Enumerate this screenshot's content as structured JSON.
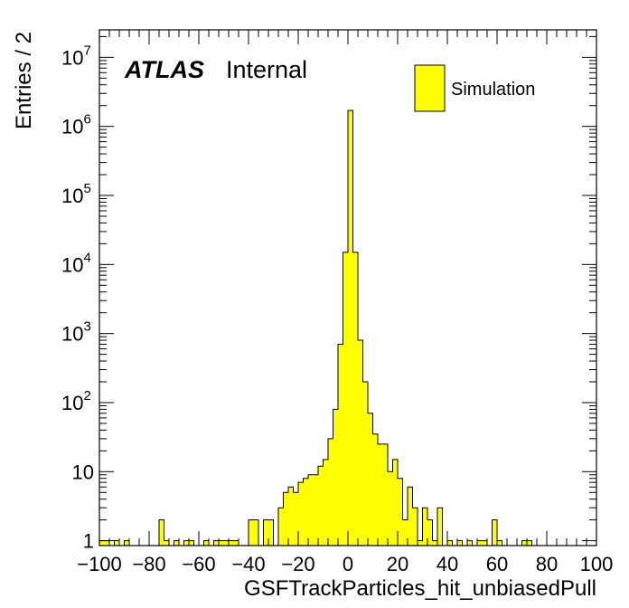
{
  "chart_data": {
    "type": "histogram",
    "xlabel": "GSFTrackParticles_hit_unbiasedPull",
    "ylabel": "Entries / 2",
    "xlim": [
      -100,
      100
    ],
    "ylim": [
      0.85,
      25000000
    ],
    "yscale": "log",
    "bin_width": 2,
    "x_ticks": [
      "−100",
      "−80",
      "−60",
      "−40",
      "−20",
      "0",
      "20",
      "40",
      "60",
      "80",
      "100"
    ],
    "y_ticks": [
      {
        "value": 1,
        "base": "1",
        "exp": ""
      },
      {
        "value": 10,
        "base": "10",
        "exp": ""
      },
      {
        "value": 100,
        "base": "10",
        "exp": "2"
      },
      {
        "value": 1000,
        "base": "10",
        "exp": "3"
      },
      {
        "value": 10000,
        "base": "10",
        "exp": "4"
      },
      {
        "value": 100000,
        "base": "10",
        "exp": "5"
      },
      {
        "value": 1000000,
        "base": "10",
        "exp": "6"
      },
      {
        "value": 10000000,
        "base": "10",
        "exp": "7"
      }
    ],
    "fill_color": "#ffff00",
    "line_color": "#000000",
    "legend_position": "top-right",
    "series": [
      {
        "name": "Simulation",
        "bins": [
          {
            "x": -100,
            "y": 1
          },
          {
            "x": -98,
            "y": 1
          },
          {
            "x": -94,
            "y": 1
          },
          {
            "x": -90,
            "y": 1
          },
          {
            "x": -76,
            "y": 2
          },
          {
            "x": -74,
            "y": 1
          },
          {
            "x": -70,
            "y": 1
          },
          {
            "x": -66,
            "y": 1
          },
          {
            "x": -64,
            "y": 1
          },
          {
            "x": -58,
            "y": 1
          },
          {
            "x": -54,
            "y": 1
          },
          {
            "x": -52,
            "y": 1
          },
          {
            "x": -50,
            "y": 1
          },
          {
            "x": -48,
            "y": 1
          },
          {
            "x": -46,
            "y": 1
          },
          {
            "x": -40,
            "y": 2
          },
          {
            "x": -38,
            "y": 2
          },
          {
            "x": -34,
            "y": 2
          },
          {
            "x": -32,
            "y": 2
          },
          {
            "x": -28,
            "y": 3
          },
          {
            "x": -26,
            "y": 5
          },
          {
            "x": -24,
            "y": 6
          },
          {
            "x": -22,
            "y": 5
          },
          {
            "x": -20,
            "y": 7
          },
          {
            "x": -18,
            "y": 8
          },
          {
            "x": -16,
            "y": 9
          },
          {
            "x": -14,
            "y": 9
          },
          {
            "x": -12,
            "y": 12
          },
          {
            "x": -10,
            "y": 15
          },
          {
            "x": -8,
            "y": 30
          },
          {
            "x": -6,
            "y": 80
          },
          {
            "x": -4,
            "y": 700
          },
          {
            "x": -2,
            "y": 15000
          },
          {
            "x": 0,
            "y": 1700000
          },
          {
            "x": 2,
            "y": 15000
          },
          {
            "x": 4,
            "y": 800
          },
          {
            "x": 6,
            "y": 200
          },
          {
            "x": 8,
            "y": 70
          },
          {
            "x": 10,
            "y": 35
          },
          {
            "x": 12,
            "y": 25
          },
          {
            "x": 14,
            "y": 25
          },
          {
            "x": 16,
            "y": 10
          },
          {
            "x": 18,
            "y": 15
          },
          {
            "x": 20,
            "y": 8
          },
          {
            "x": 22,
            "y": 2
          },
          {
            "x": 24,
            "y": 6
          },
          {
            "x": 26,
            "y": 3
          },
          {
            "x": 28,
            "y": 1
          },
          {
            "x": 30,
            "y": 3
          },
          {
            "x": 32,
            "y": 2
          },
          {
            "x": 34,
            "y": 1
          },
          {
            "x": 36,
            "y": 3
          },
          {
            "x": 40,
            "y": 1
          },
          {
            "x": 44,
            "y": 1
          },
          {
            "x": 48,
            "y": 1
          },
          {
            "x": 52,
            "y": 1
          },
          {
            "x": 54,
            "y": 1
          },
          {
            "x": 58,
            "y": 2
          },
          {
            "x": 60,
            "y": 1
          },
          {
            "x": 70,
            "y": 1
          },
          {
            "x": 72,
            "y": 1
          }
        ]
      }
    ]
  },
  "labels": {
    "atlas": "ATLAS",
    "internal": "Internal",
    "legend_entry": "Simulation"
  }
}
